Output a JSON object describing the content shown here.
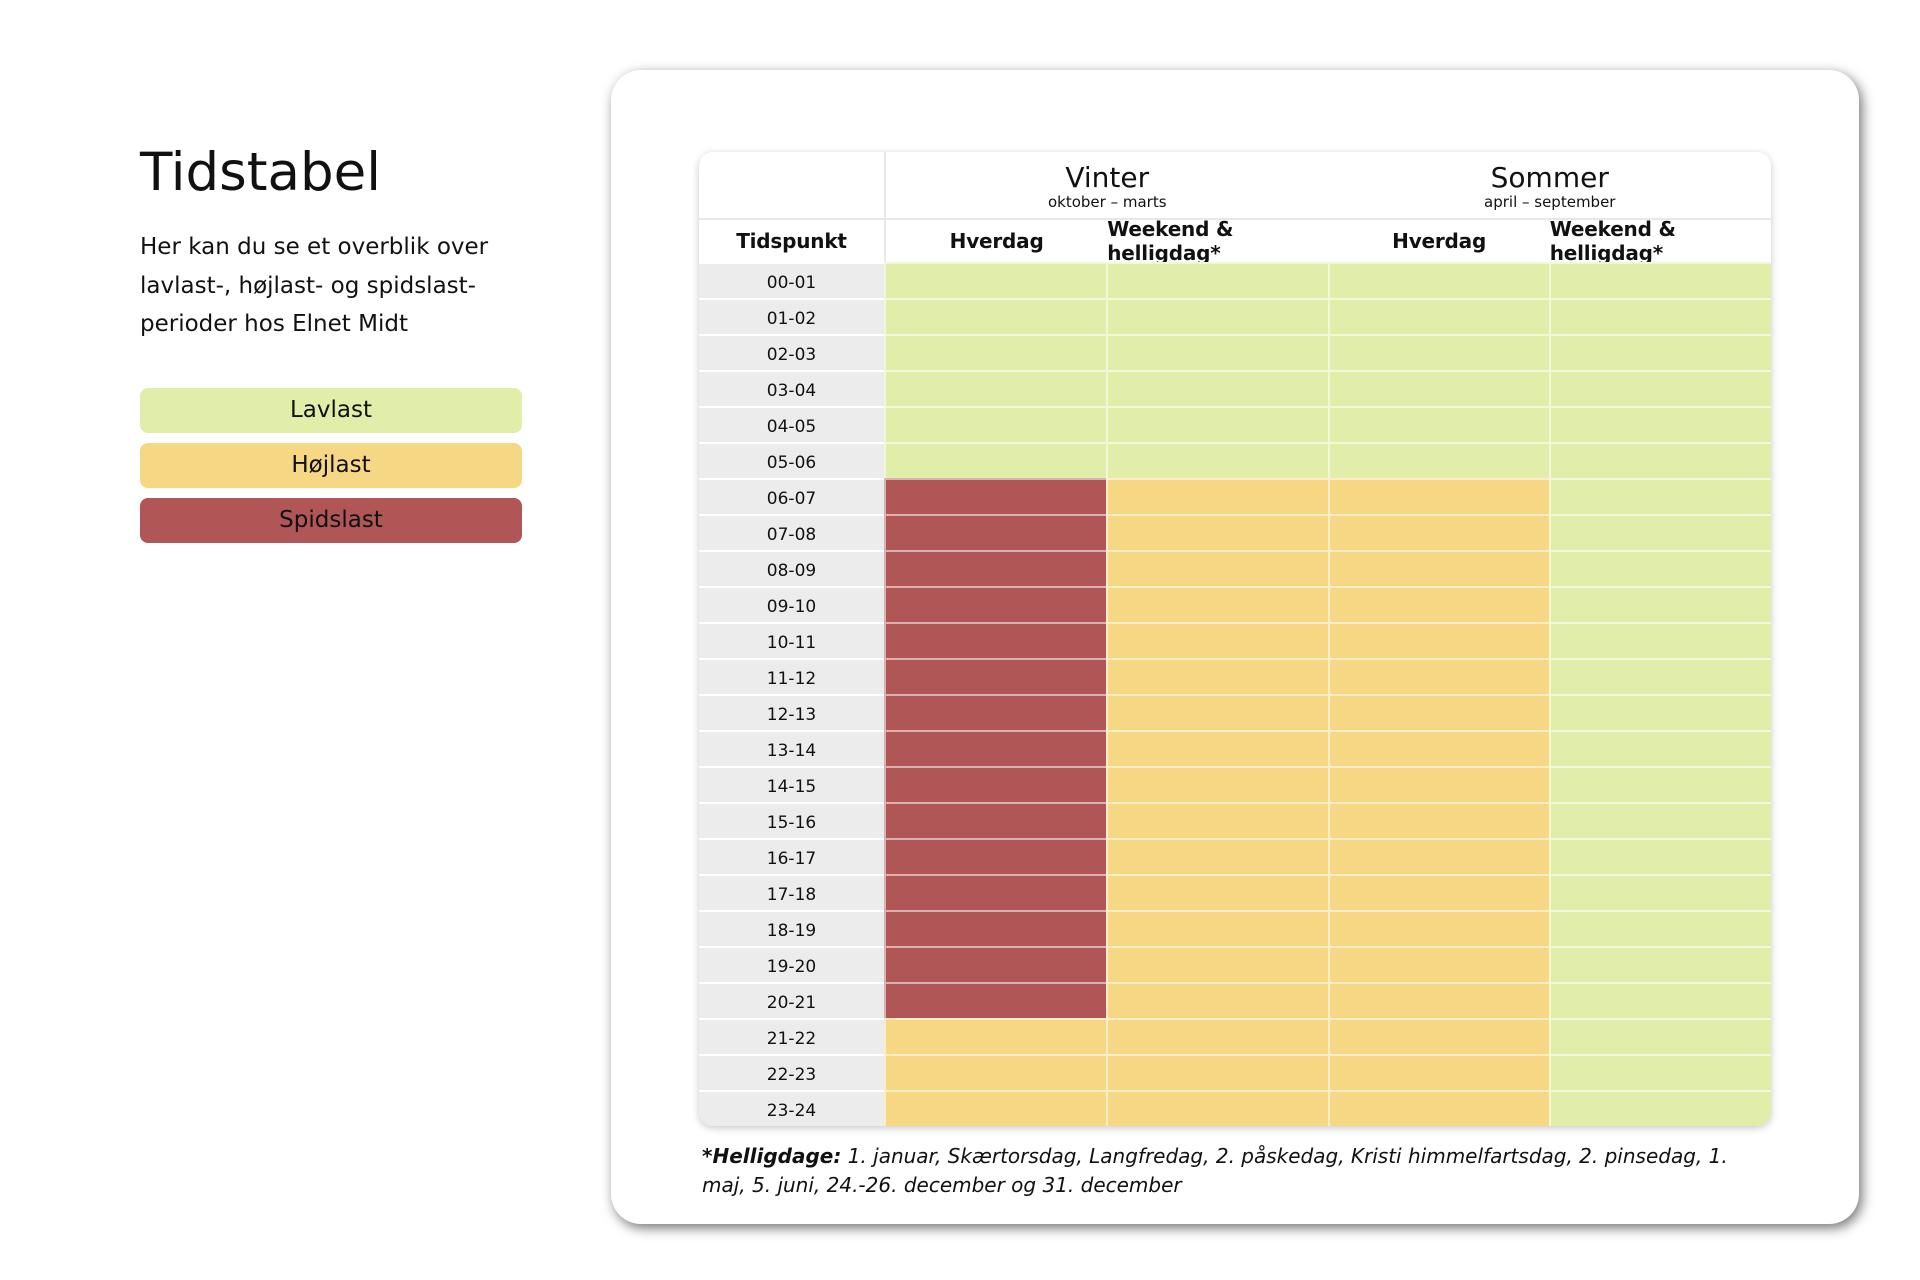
{
  "page": {
    "title": "Tidstabel",
    "intro": "Her kan du se et overblik over lavlast-, højlast- og spidslast-perioder hos Elnet Midt"
  },
  "legend": [
    {
      "label": "Lavlast",
      "color": "#e0eeaa"
    },
    {
      "label": "Højlast",
      "color": "#f6d784"
    },
    {
      "label": "Spidslast",
      "color": "#b05656"
    }
  ],
  "table": {
    "seasons": [
      {
        "name": "Vinter",
        "range": "oktober – marts"
      },
      {
        "name": "Sommer",
        "range": "april – september"
      }
    ],
    "headers": {
      "time": "Tidspunkt",
      "columns": [
        "Hverdag",
        "Weekend & helligdag*",
        "Hverdag",
        "Weekend & helligdag*"
      ]
    },
    "rows": [
      {
        "time": "00-01",
        "levels": [
          "lav",
          "lav",
          "lav",
          "lav"
        ]
      },
      {
        "time": "01-02",
        "levels": [
          "lav",
          "lav",
          "lav",
          "lav"
        ]
      },
      {
        "time": "02-03",
        "levels": [
          "lav",
          "lav",
          "lav",
          "lav"
        ]
      },
      {
        "time": "03-04",
        "levels": [
          "lav",
          "lav",
          "lav",
          "lav"
        ]
      },
      {
        "time": "04-05",
        "levels": [
          "lav",
          "lav",
          "lav",
          "lav"
        ]
      },
      {
        "time": "05-06",
        "levels": [
          "lav",
          "lav",
          "lav",
          "lav"
        ]
      },
      {
        "time": "06-07",
        "levels": [
          "spids",
          "hoj",
          "hoj",
          "lav"
        ]
      },
      {
        "time": "07-08",
        "levels": [
          "spids",
          "hoj",
          "hoj",
          "lav"
        ]
      },
      {
        "time": "08-09",
        "levels": [
          "spids",
          "hoj",
          "hoj",
          "lav"
        ]
      },
      {
        "time": "09-10",
        "levels": [
          "spids",
          "hoj",
          "hoj",
          "lav"
        ]
      },
      {
        "time": "10-11",
        "levels": [
          "spids",
          "hoj",
          "hoj",
          "lav"
        ]
      },
      {
        "time": "11-12",
        "levels": [
          "spids",
          "hoj",
          "hoj",
          "lav"
        ]
      },
      {
        "time": "12-13",
        "levels": [
          "spids",
          "hoj",
          "hoj",
          "lav"
        ]
      },
      {
        "time": "13-14",
        "levels": [
          "spids",
          "hoj",
          "hoj",
          "lav"
        ]
      },
      {
        "time": "14-15",
        "levels": [
          "spids",
          "hoj",
          "hoj",
          "lav"
        ]
      },
      {
        "time": "15-16",
        "levels": [
          "spids",
          "hoj",
          "hoj",
          "lav"
        ]
      },
      {
        "time": "16-17",
        "levels": [
          "spids",
          "hoj",
          "hoj",
          "lav"
        ]
      },
      {
        "time": "17-18",
        "levels": [
          "spids",
          "hoj",
          "hoj",
          "lav"
        ]
      },
      {
        "time": "18-19",
        "levels": [
          "spids",
          "hoj",
          "hoj",
          "lav"
        ]
      },
      {
        "time": "19-20",
        "levels": [
          "spids",
          "hoj",
          "hoj",
          "lav"
        ]
      },
      {
        "time": "20-21",
        "levels": [
          "spids",
          "hoj",
          "hoj",
          "lav"
        ]
      },
      {
        "time": "21-22",
        "levels": [
          "hoj",
          "hoj",
          "hoj",
          "lav"
        ]
      },
      {
        "time": "22-23",
        "levels": [
          "hoj",
          "hoj",
          "hoj",
          "lav"
        ]
      },
      {
        "time": "23-24",
        "levels": [
          "hoj",
          "hoj",
          "hoj",
          "lav"
        ]
      }
    ],
    "level_colors": {
      "lav": "#e0eeaa",
      "hoj": "#f6d784",
      "spids": "#b05656"
    }
  },
  "footnote": {
    "label": "*Helligdage:",
    "text": " 1. januar, Skærtorsdag, Langfredag, 2. påskedag, Kristi himmelfartsdag, 2. pinsedag, 1. maj, 5. juni, 24.-26. december og 31. december"
  }
}
